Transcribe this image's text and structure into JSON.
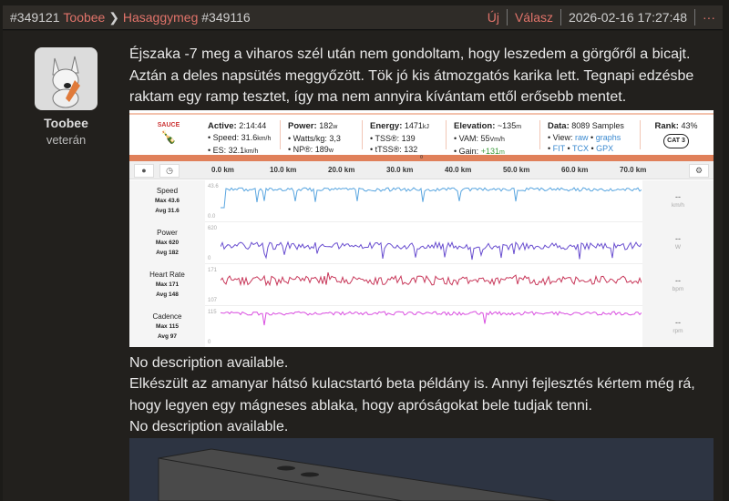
{
  "header": {
    "post_id": "#349121",
    "author": "Toobee",
    "reply_to": "Hasaggymeg",
    "reply_id": "#349116",
    "new_label": "Új",
    "reply_label": "Válasz",
    "timestamp": "2026-02-16 17:27:48",
    "more": "···"
  },
  "user": {
    "name": "Toobee",
    "rank": "veterán"
  },
  "post": {
    "text1": "Éjszaka -7 meg a viharos szél után nem gondoltam, hogy leszedem a görgőről a bicajt. Aztán a deles napsütés meggyőzött. Tök jó kis átmozgatós karika lett. Tegnapi edzésbe raktam egy ramp tesztet, így ma nem annyira kívántam ettől erősebb mentet.",
    "caption1": "No description available.",
    "text2": "Elkészült az amanyar hátsó kulacstartó beta példány is. Annyi fejlesztés kértem még rá, hogy legyen egy mágneses ablaka, hogy apróságokat bele tudjak tenni.",
    "caption2": "No description available."
  },
  "sauce": {
    "logo": "SAUCE",
    "active": {
      "label": "Active:",
      "value": "2:14:44",
      "speed": "• Speed: 31.6",
      "speed_u": "km/h",
      "es": "• ES: 32.1",
      "es_u": "km/h"
    },
    "power": {
      "label": "Power:",
      "value": "182",
      "u": "w",
      "wkg": "• Watts/kg: 3,3",
      "np": "• NP®: 189",
      "np_u": "w"
    },
    "energy": {
      "label": "Energy:",
      "value": "1471",
      "u": "kJ",
      "tss": "• TSS®: 139",
      "ttss": "• tTSS®: 132"
    },
    "elevation": {
      "label": "Elevation:",
      "value": "~135",
      "u": "m",
      "vam": "• VAM: 55",
      "vam_u": "Vm/h",
      "gain": "• Gain:",
      "gain_v": "+131",
      "gain_u": "m"
    },
    "data": {
      "label": "Data:",
      "value": "8089 Samples",
      "view": "• View:",
      "raw": "raw",
      "graphs": "graphs",
      "fit": "FIT",
      "tcx": "TCX",
      "gpx": "GPX"
    },
    "rank": {
      "label": "Rank:",
      "value": "43%",
      "badge": "CAT 3"
    },
    "km_ticks": [
      "0.0 km",
      "10.0 km",
      "20.0 km",
      "30.0 km",
      "40.0 km",
      "50.0 km",
      "60.0 km",
      "70.0 km"
    ],
    "rows": [
      {
        "name": "Speed",
        "max": "Max 43.6",
        "avg": "Avg 31.6",
        "ytop": "43.6",
        "ybot": "0.0",
        "unit": "km/h",
        "cur": "--",
        "color": "#5aa6e0"
      },
      {
        "name": "Power",
        "max": "Max 620",
        "avg": "Avg 182",
        "ytop": "620",
        "ybot": "0",
        "unit": "W",
        "cur": "--",
        "color": "#6a4fd0"
      },
      {
        "name": "Heart Rate",
        "max": "Max 171",
        "avg": "Avg 148",
        "ytop": "171",
        "ybot": "107",
        "unit": "bpm",
        "cur": "--",
        "color": "#c8385a"
      },
      {
        "name": "Cadence",
        "max": "Max 115",
        "avg": "Avg 97",
        "ytop": "115",
        "ybot": "0",
        "unit": "rpm",
        "cur": "--",
        "color": "#d94fe0"
      }
    ]
  }
}
